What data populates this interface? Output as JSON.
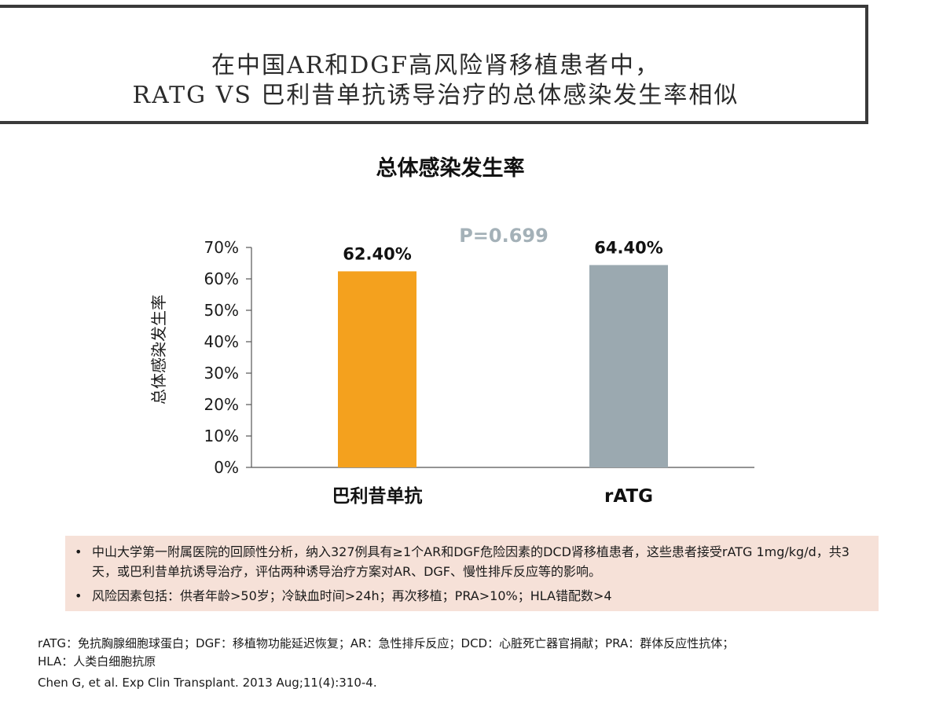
{
  "header": {
    "title_line1": "在中国AR和DGF高风险肾移植患者中，",
    "title_line2": "RATG VS 巴利昔单抗诱导治疗的总体感染发生率相似"
  },
  "chart_data": {
    "type": "bar",
    "title": "总体感染发生率",
    "ylabel": "总体感染发生率",
    "xlabel": "",
    "categories": [
      "巴利昔单抗",
      "rATG"
    ],
    "values": [
      62.4,
      64.4
    ],
    "value_labels": [
      "62.40%",
      "64.40%"
    ],
    "bar_colors": [
      "#f4a11e",
      "#9ba9b0"
    ],
    "ylim": [
      0,
      70
    ],
    "yticks": [
      0,
      10,
      20,
      30,
      40,
      50,
      60,
      70
    ],
    "ytick_labels": [
      "0%",
      "10%",
      "20%",
      "30%",
      "40%",
      "50%",
      "60%",
      "70%"
    ],
    "grid": false,
    "annotation": {
      "text": "P=0.699",
      "color": "#a4b1b8"
    }
  },
  "notes": {
    "items": [
      "中山大学第一附属医院的回顾性分析，纳入327例具有≥1个AR和DGF危险因素的DCD肾移植患者，这些患者接受rATG 1mg/kg/d，共3天，或巴利昔单抗诱导治疗，评估两种诱导治疗方案对AR、DGF、慢性排斥反应等的影响。",
      "风险因素包括：供者年龄>50岁；冷缺血时间>24h；再次移植；PRA>10%；HLA错配数>4"
    ],
    "bullet": "•",
    "background_color": "#f6e1d8"
  },
  "footnotes": {
    "line1": "rATG：免抗胸腺细胞球蛋白；DGF：移植物功能延迟恢复；AR：急性排斥反应；DCD：心脏死亡器官捐献；PRA：群体反应性抗体；",
    "line2": "HLA：人类白细胞抗原",
    "citation": "Chen G, et al. Exp Clin Transplant. 2013 Aug;11(4):310-4."
  }
}
